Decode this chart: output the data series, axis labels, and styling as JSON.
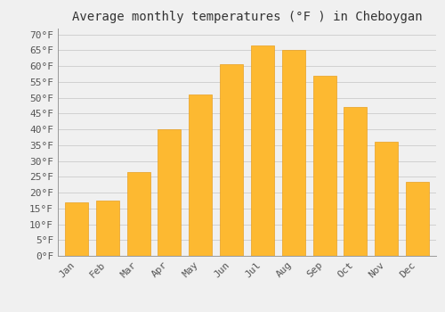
{
  "title": "Average monthly temperatures (°F ) in Cheboygan",
  "months": [
    "Jan",
    "Feb",
    "Mar",
    "Apr",
    "May",
    "Jun",
    "Jul",
    "Aug",
    "Sep",
    "Oct",
    "Nov",
    "Dec"
  ],
  "values": [
    17,
    17.5,
    26.5,
    40,
    51,
    60.5,
    66.5,
    65,
    57,
    47,
    36,
    23.5
  ],
  "bar_color": "#FDB931",
  "bar_edge_color": "#E8A020",
  "background_color": "#F0F0F0",
  "grid_color": "#CCCCCC",
  "ytick_labels": [
    "0°F",
    "5°F",
    "10°F",
    "15°F",
    "20°F",
    "25°F",
    "30°F",
    "35°F",
    "40°F",
    "45°F",
    "50°F",
    "55°F",
    "60°F",
    "65°F",
    "70°F"
  ],
  "ytick_values": [
    0,
    5,
    10,
    15,
    20,
    25,
    30,
    35,
    40,
    45,
    50,
    55,
    60,
    65,
    70
  ],
  "ylim": [
    0,
    72
  ],
  "title_fontsize": 10,
  "tick_fontsize": 8,
  "font_family": "monospace",
  "bar_width": 0.75
}
